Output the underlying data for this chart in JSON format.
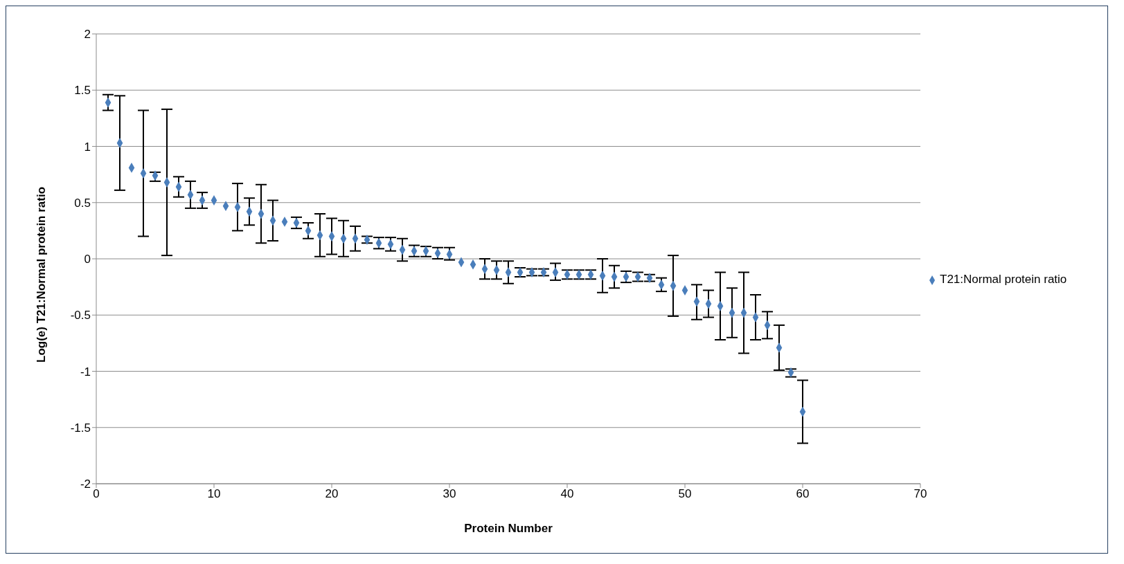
{
  "chart_data": {
    "type": "scatter",
    "xlabel": "Protein Number",
    "ylabel": "Log(e) T21:Normal protein ratio",
    "xlim": [
      0,
      70
    ],
    "xticks": [
      0,
      10,
      20,
      30,
      40,
      50,
      60,
      70
    ],
    "ylim": [
      -2,
      2
    ],
    "yticks": [
      -2,
      -1.5,
      -1,
      -0.5,
      0,
      0.5,
      1,
      1.5,
      2
    ],
    "grid": "y",
    "legend": "right",
    "marker": "diamond",
    "x": [
      1,
      2,
      3,
      4,
      5,
      6,
      7,
      8,
      9,
      10,
      11,
      12,
      13,
      14,
      15,
      16,
      17,
      18,
      19,
      20,
      21,
      22,
      23,
      24,
      25,
      26,
      27,
      28,
      29,
      30,
      31,
      32,
      33,
      34,
      35,
      36,
      37,
      38,
      39,
      40,
      41,
      42,
      43,
      44,
      45,
      46,
      47,
      48,
      49,
      50,
      51,
      52,
      53,
      54,
      55,
      56,
      57,
      58,
      59,
      60
    ],
    "series": [
      {
        "name": "T21:Normal protein ratio",
        "color": "#4a7ebb",
        "values": [
          1.39,
          1.03,
          0.81,
          0.76,
          0.74,
          0.68,
          0.64,
          0.57,
          0.52,
          0.52,
          0.47,
          0.46,
          0.42,
          0.4,
          0.34,
          0.33,
          0.32,
          0.25,
          0.21,
          0.2,
          0.18,
          0.18,
          0.17,
          0.14,
          0.13,
          0.08,
          0.07,
          0.07,
          0.05,
          0.04,
          -0.03,
          -0.05,
          -0.09,
          -0.1,
          -0.12,
          -0.12,
          -0.12,
          -0.12,
          -0.12,
          -0.14,
          -0.14,
          -0.14,
          -0.15,
          -0.16,
          -0.16,
          -0.16,
          -0.17,
          -0.23,
          -0.24,
          -0.28,
          -0.38,
          -0.4,
          -0.42,
          -0.48,
          -0.48,
          -0.52,
          -0.59,
          -0.79,
          -1.01,
          -1.36
        ],
        "errors": [
          [
            1.32,
            1.46
          ],
          [
            0.61,
            1.45
          ],
          null,
          [
            0.2,
            1.32
          ],
          [
            0.69,
            0.77
          ],
          [
            0.03,
            1.33
          ],
          [
            0.55,
            0.73
          ],
          [
            0.45,
            0.69
          ],
          [
            0.45,
            0.59
          ],
          null,
          null,
          [
            0.25,
            0.67
          ],
          [
            0.3,
            0.54
          ],
          [
            0.14,
            0.66
          ],
          [
            0.16,
            0.52
          ],
          null,
          [
            0.27,
            0.37
          ],
          [
            0.18,
            0.32
          ],
          [
            0.02,
            0.4
          ],
          [
            0.04,
            0.36
          ],
          [
            0.02,
            0.34
          ],
          [
            0.07,
            0.29
          ],
          [
            0.14,
            0.2
          ],
          [
            0.09,
            0.19
          ],
          [
            0.07,
            0.19
          ],
          [
            -0.02,
            0.18
          ],
          [
            0.02,
            0.12
          ],
          [
            0.02,
            0.11
          ],
          [
            0.0,
            0.1
          ],
          [
            -0.01,
            0.1
          ],
          null,
          null,
          [
            -0.18,
            0.0
          ],
          [
            -0.18,
            -0.02
          ],
          [
            -0.22,
            -0.02
          ],
          [
            -0.16,
            -0.08
          ],
          [
            -0.15,
            -0.09
          ],
          [
            -0.15,
            -0.09
          ],
          [
            -0.19,
            -0.04
          ],
          [
            -0.18,
            -0.1
          ],
          [
            -0.18,
            -0.1
          ],
          [
            -0.18,
            -0.1
          ],
          [
            -0.3,
            0.0
          ],
          [
            -0.26,
            -0.06
          ],
          [
            -0.21,
            -0.11
          ],
          [
            -0.2,
            -0.12
          ],
          [
            -0.2,
            -0.14
          ],
          [
            -0.29,
            -0.17
          ],
          [
            -0.51,
            0.03
          ],
          null,
          [
            -0.54,
            -0.23
          ],
          [
            -0.52,
            -0.28
          ],
          [
            -0.72,
            -0.12
          ],
          [
            -0.7,
            -0.26
          ],
          [
            -0.84,
            -0.12
          ],
          [
            -0.72,
            -0.32
          ],
          [
            -0.71,
            -0.47
          ],
          [
            -0.99,
            -0.59
          ],
          [
            -1.05,
            -0.98
          ],
          [
            -1.64,
            -1.08
          ]
        ]
      }
    ]
  }
}
